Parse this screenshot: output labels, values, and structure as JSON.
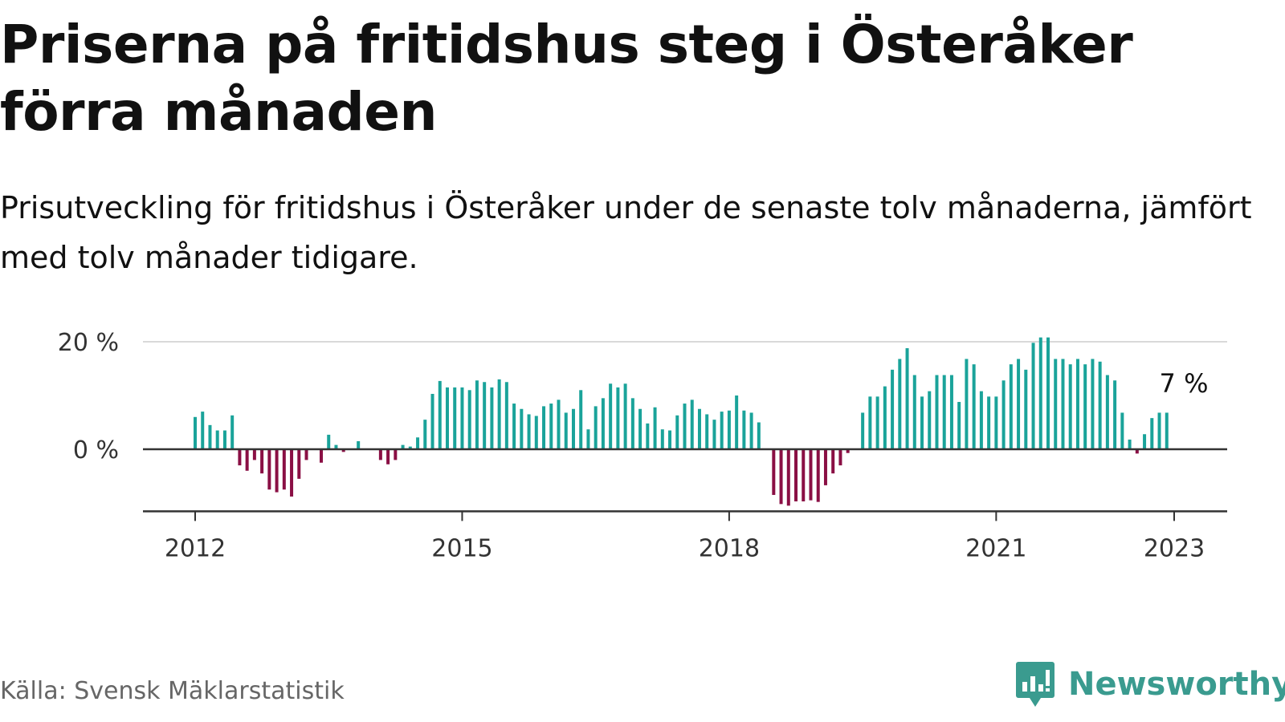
{
  "header": {
    "title": "Priserna på fritidshus steg i Österåker förra månaden",
    "subtitle": "Prisutveckling för fritidshus i Österåker under de senaste tolv månaderna, jämfört med tolv månader tidigare."
  },
  "footer": {
    "source": "Källa: Svensk Mäklarstatistik",
    "brand": "Newsworthy"
  },
  "colors": {
    "positive": "#1aa39a",
    "negative": "#8a0f44",
    "brand": "#3a9b8f"
  },
  "chart_data": {
    "type": "bar",
    "x_start": "2012-01",
    "x_end": "2023-01",
    "ylim": [
      -12,
      22
    ],
    "yticks": [
      {
        "value": 0,
        "label": "0 %"
      },
      {
        "value": 20,
        "label": "20 %"
      }
    ],
    "xticks": [
      {
        "date": "2012-01",
        "label": "2012"
      },
      {
        "date": "2015-01",
        "label": "2015"
      },
      {
        "date": "2018-01",
        "label": "2018"
      },
      {
        "date": "2021-01",
        "label": "2021"
      },
      {
        "date": "2023-01",
        "label": "2023"
      }
    ],
    "annotation": {
      "date": "2023-01",
      "value": 7,
      "text": "7 %"
    },
    "values": [
      6,
      7,
      4.5,
      3.5,
      3.5,
      6.3,
      -3,
      -4,
      -2,
      -4.5,
      -7.5,
      -8,
      -7.5,
      -8.8,
      -5.5,
      -2,
      null,
      -2.5,
      2.7,
      0.8,
      -0.5,
      null,
      1.5,
      null,
      null,
      -2,
      -2.8,
      -2,
      0.8,
      0.5,
      2.2,
      5.5,
      10.3,
      12.7,
      11.5,
      11.5,
      11.5,
      11,
      12.8,
      12.5,
      11.5,
      13,
      12.5,
      8.5,
      7.5,
      6.5,
      6.2,
      8,
      8.5,
      9.2,
      6.8,
      7.5,
      11,
      3.7,
      8,
      9.5,
      12.2,
      11.5,
      12.2,
      9.5,
      7.5,
      4.8,
      7.8,
      3.7,
      3.5,
      6.3,
      8.5,
      9.2,
      7.5,
      6.5,
      5.5,
      7,
      7.2,
      10,
      7.2,
      6.8,
      5,
      null,
      -8.5,
      -10.2,
      -10.5,
      -9.7,
      -9.7,
      -9.5,
      -9.8,
      -6.7,
      -4.5,
      -3,
      -0.7,
      null,
      6.8,
      9.8,
      9.8,
      11.7,
      14.8,
      16.8,
      18.8,
      13.8,
      9.8,
      10.8,
      13.8,
      13.8,
      13.8,
      8.8,
      16.8,
      15.8,
      10.8,
      9.8,
      9.8,
      12.8,
      15.8,
      16.8,
      14.8,
      19.8,
      20.8,
      20.8,
      16.8,
      16.8,
      15.8,
      16.8,
      15.8,
      16.8,
      16.3,
      13.8,
      12.8,
      6.8,
      1.8,
      -0.8,
      2.8,
      5.8,
      6.8,
      6.8
    ]
  }
}
